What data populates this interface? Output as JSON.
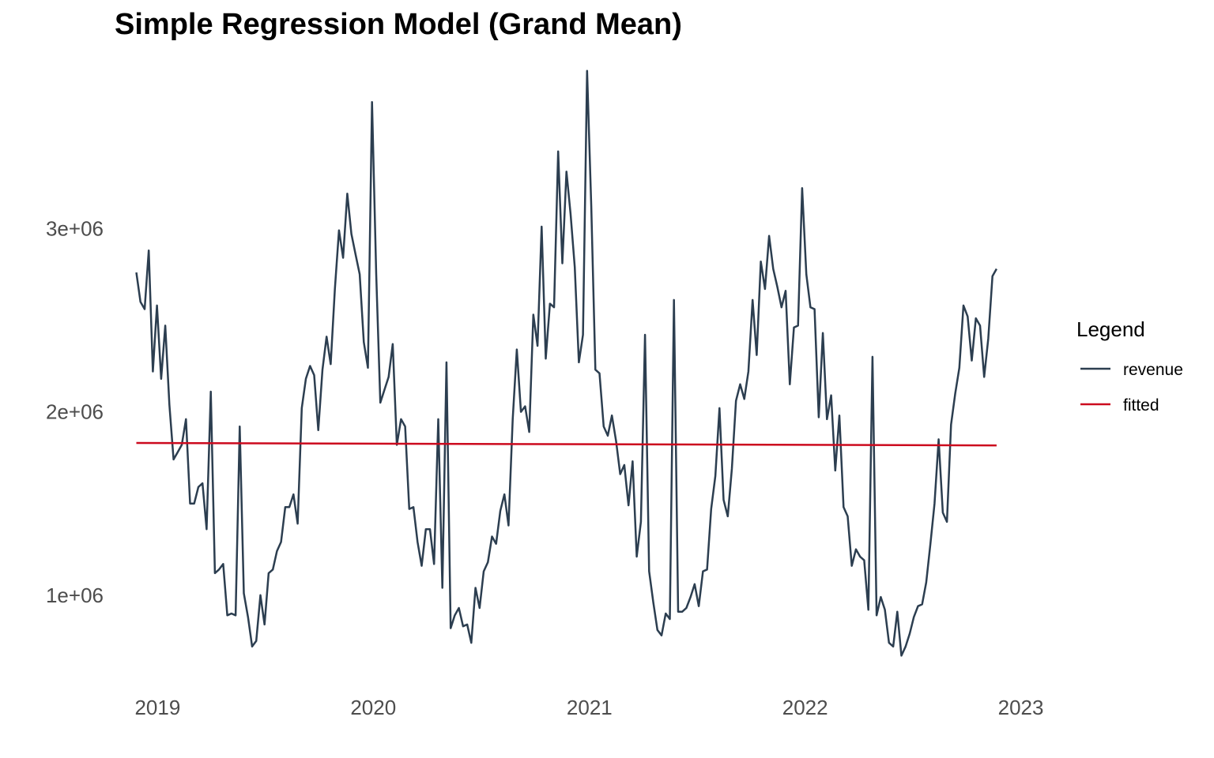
{
  "chart_data": {
    "type": "line",
    "title": "Simple Regression Model (Grand Mean)",
    "xlabel": "",
    "ylabel": "",
    "x_ticks": [
      "2019",
      "2020",
      "2021",
      "2022",
      "2023"
    ],
    "y_ticks": [
      {
        "value": 1000000,
        "label": "1e+06"
      },
      {
        "value": 2000000,
        "label": "2e+06"
      },
      {
        "value": 3000000,
        "label": "3e+06"
      }
    ],
    "xlim": [
      "2018-11-20",
      "2023-01-15"
    ],
    "ylim": [
      620000,
      3850000
    ],
    "grid": false,
    "legend": {
      "title": "Legend",
      "position": "right"
    },
    "series": [
      {
        "name": "revenue",
        "color": "#2c3e50",
        "start_date": "2018-11-26",
        "interval_days": 7,
        "values": [
          2760000,
          2600000,
          2560000,
          2880000,
          2220000,
          2580000,
          2180000,
          2470000,
          2040000,
          1740000,
          1780000,
          1820000,
          1960000,
          1500000,
          1500000,
          1590000,
          1610000,
          1360000,
          2110000,
          1120000,
          1140000,
          1170000,
          890000,
          900000,
          890000,
          1920000,
          1010000,
          880000,
          720000,
          750000,
          1000000,
          840000,
          1120000,
          1140000,
          1240000,
          1290000,
          1480000,
          1480000,
          1550000,
          1390000,
          2020000,
          2180000,
          2250000,
          2200000,
          1900000,
          2230000,
          2410000,
          2260000,
          2670000,
          2990000,
          2840000,
          3190000,
          2970000,
          2860000,
          2750000,
          2380000,
          2240000,
          3690000,
          2750000,
          2050000,
          2120000,
          2190000,
          2370000,
          1820000,
          1960000,
          1920000,
          1470000,
          1480000,
          1290000,
          1160000,
          1360000,
          1360000,
          1170000,
          1960000,
          1040000,
          2270000,
          820000,
          890000,
          930000,
          830000,
          840000,
          740000,
          1040000,
          930000,
          1130000,
          1180000,
          1320000,
          1280000,
          1460000,
          1550000,
          1380000,
          1960000,
          2340000,
          2000000,
          2030000,
          1890000,
          2530000,
          2360000,
          3010000,
          2290000,
          2590000,
          2570000,
          3420000,
          2810000,
          3310000,
          3080000,
          2790000,
          2270000,
          2420000,
          3860000,
          3120000,
          2230000,
          2210000,
          1920000,
          1870000,
          1980000,
          1840000,
          1660000,
          1710000,
          1490000,
          1730000,
          1210000,
          1400000,
          2420000,
          1130000,
          960000,
          810000,
          780000,
          900000,
          870000,
          2610000,
          910000,
          910000,
          930000,
          990000,
          1060000,
          940000,
          1130000,
          1140000,
          1470000,
          1650000,
          2020000,
          1520000,
          1430000,
          1690000,
          2060000,
          2150000,
          2070000,
          2220000,
          2610000,
          2310000,
          2820000,
          2670000,
          2960000,
          2780000,
          2680000,
          2570000,
          2660000,
          2150000,
          2460000,
          2470000,
          3220000,
          2750000,
          2570000,
          2560000,
          1970000,
          2430000,
          1960000,
          2090000,
          1680000,
          1980000,
          1480000,
          1430000,
          1160000,
          1250000,
          1210000,
          1190000,
          920000,
          2300000,
          890000,
          990000,
          920000,
          740000,
          720000,
          910000,
          670000,
          720000,
          790000,
          880000,
          940000,
          950000,
          1070000,
          1280000,
          1500000,
          1850000,
          1450000,
          1400000,
          1930000,
          2100000,
          2240000,
          2580000,
          2520000,
          2280000,
          2510000,
          2470000,
          2190000,
          2400000,
          2740000,
          2780000
        ]
      },
      {
        "name": "fitted",
        "color": "#cc0a1e",
        "start_date": "2018-11-26",
        "end_date": "2022-11-21",
        "values": [
          1830000,
          1817000
        ]
      }
    ]
  }
}
